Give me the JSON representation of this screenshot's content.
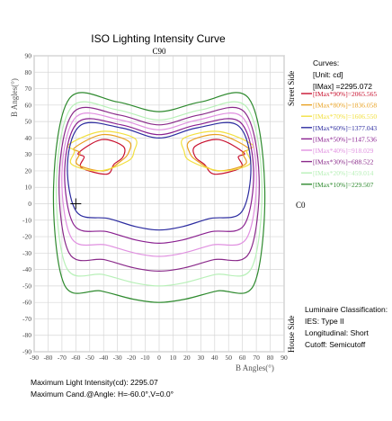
{
  "chart_data": {
    "type": "line",
    "title": "ISO Lighting Intensity Curve",
    "top_label": "C90",
    "right_label": "C0",
    "xlabel": "B Angles(°)",
    "ylabel": "B Angles(°)",
    "side_label_top": "Street Side",
    "side_label_bottom": "House Side",
    "xlim": [
      -90,
      90
    ],
    "ylim": [
      -90,
      90
    ],
    "x_ticks": [
      "-90",
      "-80",
      "-70",
      "-60",
      "-50",
      "-40",
      "-30",
      "-20",
      "-10",
      "0",
      "10",
      "20",
      "30",
      "40",
      "50",
      "60",
      "70",
      "80",
      "90"
    ],
    "y_ticks": [
      "90",
      "80",
      "70",
      "60",
      "50",
      "40",
      "30",
      "20",
      "10",
      "0",
      "-10",
      "-20",
      "-30",
      "-40",
      "-50",
      "-60",
      "-70",
      "-80",
      "-90"
    ],
    "grid": true,
    "legend_header": [
      "Curves:",
      "[Unit: cd]",
      "[IMax]    =2295.072"
    ],
    "series": [
      {
        "name": "[IMax*90%]=2065.565",
        "color": "#c8102e",
        "bounds": [
          -54,
          57,
          18,
          39
        ],
        "level": 90
      },
      {
        "name": "[IMax*80%]=1836.058",
        "color": "#e8a020",
        "bounds": [
          -57,
          60,
          20,
          42
        ],
        "level": 80
      },
      {
        "name": "[IMax*70%]=1606.550",
        "color": "#f2e040",
        "bounds": [
          -61,
          63,
          20,
          44
        ],
        "level": 70
      },
      {
        "name": "[IMax*60%]=1377.043",
        "color": "#2c2ca0",
        "bounds": [
          -66,
          66,
          -11,
          48
        ],
        "level": 60
      },
      {
        "name": "[IMax*50%]=1147.536",
        "color": "#8a2090",
        "bounds": [
          -68,
          68,
          -19,
          50
        ],
        "level": 50
      },
      {
        "name": "[IMax*40%]=918.029",
        "color": "#e090e0",
        "bounds": [
          -70,
          70,
          -27,
          53
        ],
        "level": 40
      },
      {
        "name": "[IMax*30%]=688.522",
        "color": "#8a2a8a",
        "bounds": [
          -72,
          72,
          -36,
          56
        ],
        "level": 30
      },
      {
        "name": "[IMax*20%]=459.014",
        "color": "#b8f0b8",
        "bounds": [
          -74,
          74,
          -45,
          59
        ],
        "level": 20
      },
      {
        "name": "[IMax*10%]=229.507",
        "color": "#2e8a2e",
        "bounds": [
          -76,
          76,
          -55,
          64
        ],
        "level": 10
      }
    ],
    "max_marker": {
      "h": -60,
      "v": 0
    },
    "classification": [
      "Luminaire Classification:",
      "IES: Type II",
      "Longitudinal: Short",
      "Cutoff:  Semicutoff"
    ],
    "footer": [
      "Maximum Light Intensity(cd): 2295.07",
      "Maximum Cand.@Angle: H=-60.0°,V=0.0°"
    ]
  }
}
